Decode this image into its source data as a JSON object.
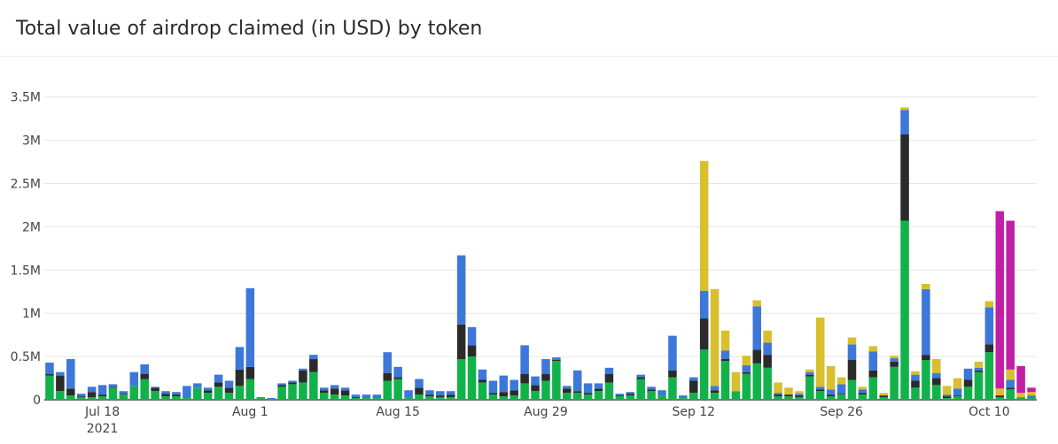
{
  "chart_data": {
    "type": "bar",
    "stacked": true,
    "title": "Total value of airdrop claimed (in USD) by token",
    "xlabel": "",
    "ylabel": "",
    "ylim": [
      0,
      3650000
    ],
    "grid": true,
    "legend": "none",
    "x_start": "2021-07-13",
    "yticks": [
      {
        "v": 0,
        "label": "0"
      },
      {
        "v": 500000,
        "label": "0.5M"
      },
      {
        "v": 1000000,
        "label": "1M"
      },
      {
        "v": 1500000,
        "label": "1.5M"
      },
      {
        "v": 2000000,
        "label": "2M"
      },
      {
        "v": 2500000,
        "label": "2.5M"
      },
      {
        "v": 3000000,
        "label": "3M"
      },
      {
        "v": 3500000,
        "label": "3.5M"
      }
    ],
    "xticks": [
      {
        "date": "2021-07-18",
        "label": "Jul 18",
        "sub": "2021"
      },
      {
        "date": "2021-08-01",
        "label": "Aug 1",
        "sub": ""
      },
      {
        "date": "2021-08-15",
        "label": "Aug 15",
        "sub": ""
      },
      {
        "date": "2021-08-29",
        "label": "Aug 29",
        "sub": ""
      },
      {
        "date": "2021-09-12",
        "label": "Sep 12",
        "sub": ""
      },
      {
        "date": "2021-09-26",
        "label": "Sep 26",
        "sub": ""
      },
      {
        "date": "2021-10-10",
        "label": "Oct 10",
        "sub": ""
      }
    ],
    "series": [
      {
        "color": "#12b24a",
        "values": [
          280000,
          100000,
          50000,
          30000,
          30000,
          40000,
          140000,
          60000,
          160000,
          240000,
          100000,
          40000,
          40000,
          20000,
          140000,
          80000,
          150000,
          80000,
          160000,
          240000,
          20000,
          10000,
          150000,
          180000,
          200000,
          320000,
          80000,
          60000,
          50000,
          20000,
          20000,
          20000,
          220000,
          240000,
          30000,
          60000,
          40000,
          30000,
          30000,
          470000,
          500000,
          200000,
          60000,
          40000,
          50000,
          190000,
          100000,
          220000,
          450000,
          80000,
          80000,
          60000,
          100000,
          200000,
          40000,
          50000,
          240000,
          100000,
          50000,
          260000,
          20000,
          80000,
          580000,
          80000,
          450000,
          100000,
          300000,
          420000,
          370000,
          40000,
          40000,
          30000,
          270000,
          100000,
          40000,
          60000,
          230000,
          60000,
          260000,
          30000,
          380000,
          2070000,
          140000,
          460000,
          170000,
          20000,
          40000,
          150000,
          320000,
          550000,
          30000,
          120000,
          30000,
          20000
        ]
      },
      {
        "color": "#2b2b2b",
        "values": [
          20000,
          180000,
          80000,
          10000,
          60000,
          20000,
          10000,
          10000,
          0,
          60000,
          40000,
          30000,
          20000,
          0,
          0,
          30000,
          50000,
          60000,
          190000,
          140000,
          0,
          0,
          20000,
          20000,
          140000,
          150000,
          30000,
          70000,
          60000,
          10000,
          0,
          0,
          90000,
          20000,
          0,
          80000,
          20000,
          20000,
          30000,
          400000,
          130000,
          30000,
          20000,
          50000,
          60000,
          110000,
          70000,
          80000,
          10000,
          50000,
          20000,
          20000,
          30000,
          100000,
          10000,
          20000,
          20000,
          20000,
          0,
          80000,
          0,
          140000,
          360000,
          30000,
          20000,
          0,
          20000,
          160000,
          150000,
          20000,
          20000,
          20000,
          20000,
          20000,
          20000,
          10000,
          230000,
          20000,
          80000,
          20000,
          60000,
          1000000,
          80000,
          60000,
          80000,
          20000,
          10000,
          80000,
          20000,
          90000,
          20000,
          20000,
          0,
          0
        ]
      },
      {
        "color": "#3d78d9",
        "values": [
          130000,
          40000,
          340000,
          30000,
          60000,
          110000,
          30000,
          30000,
          160000,
          110000,
          10000,
          30000,
          30000,
          140000,
          50000,
          30000,
          90000,
          80000,
          260000,
          910000,
          10000,
          10000,
          20000,
          20000,
          20000,
          50000,
          30000,
          40000,
          30000,
          30000,
          40000,
          40000,
          240000,
          120000,
          80000,
          100000,
          50000,
          50000,
          40000,
          800000,
          210000,
          120000,
          140000,
          190000,
          120000,
          330000,
          100000,
          170000,
          30000,
          30000,
          240000,
          110000,
          60000,
          70000,
          20000,
          20000,
          30000,
          30000,
          60000,
          400000,
          30000,
          40000,
          320000,
          50000,
          100000,
          0,
          80000,
          500000,
          140000,
          20000,
          0,
          20000,
          30000,
          30000,
          60000,
          110000,
          180000,
          40000,
          220000,
          0,
          40000,
          280000,
          70000,
          760000,
          60000,
          20000,
          80000,
          130000,
          30000,
          430000,
          0,
          90000,
          0,
          30000
        ]
      },
      {
        "color": "#d8bf2e",
        "values": [
          0,
          0,
          0,
          0,
          0,
          0,
          0,
          0,
          0,
          0,
          0,
          0,
          0,
          0,
          0,
          0,
          0,
          0,
          0,
          0,
          0,
          0,
          0,
          0,
          0,
          0,
          0,
          0,
          0,
          0,
          0,
          0,
          0,
          0,
          0,
          0,
          0,
          0,
          0,
          0,
          0,
          0,
          0,
          0,
          0,
          0,
          0,
          0,
          0,
          0,
          0,
          0,
          0,
          0,
          0,
          0,
          0,
          0,
          0,
          0,
          0,
          0,
          1500000,
          1120000,
          230000,
          220000,
          110000,
          70000,
          140000,
          120000,
          80000,
          30000,
          30000,
          800000,
          270000,
          80000,
          80000,
          30000,
          60000,
          30000,
          30000,
          30000,
          40000,
          60000,
          160000,
          100000,
          120000,
          0,
          70000,
          70000,
          80000,
          120000,
          50000,
          40000
        ]
      },
      {
        "color": "#c21fa6",
        "values": [
          0,
          0,
          0,
          0,
          0,
          0,
          0,
          0,
          0,
          0,
          0,
          0,
          0,
          0,
          0,
          0,
          0,
          0,
          0,
          0,
          0,
          0,
          0,
          0,
          0,
          0,
          0,
          0,
          0,
          0,
          0,
          0,
          0,
          0,
          0,
          0,
          0,
          0,
          0,
          0,
          0,
          0,
          0,
          0,
          0,
          0,
          0,
          0,
          0,
          0,
          0,
          0,
          0,
          0,
          0,
          0,
          0,
          0,
          0,
          0,
          0,
          0,
          0,
          0,
          0,
          0,
          0,
          0,
          0,
          0,
          0,
          0,
          0,
          0,
          0,
          0,
          0,
          0,
          0,
          0,
          0,
          0,
          0,
          0,
          0,
          0,
          0,
          0,
          0,
          0,
          2050000,
          1720000,
          310000,
          50000
        ]
      }
    ]
  }
}
